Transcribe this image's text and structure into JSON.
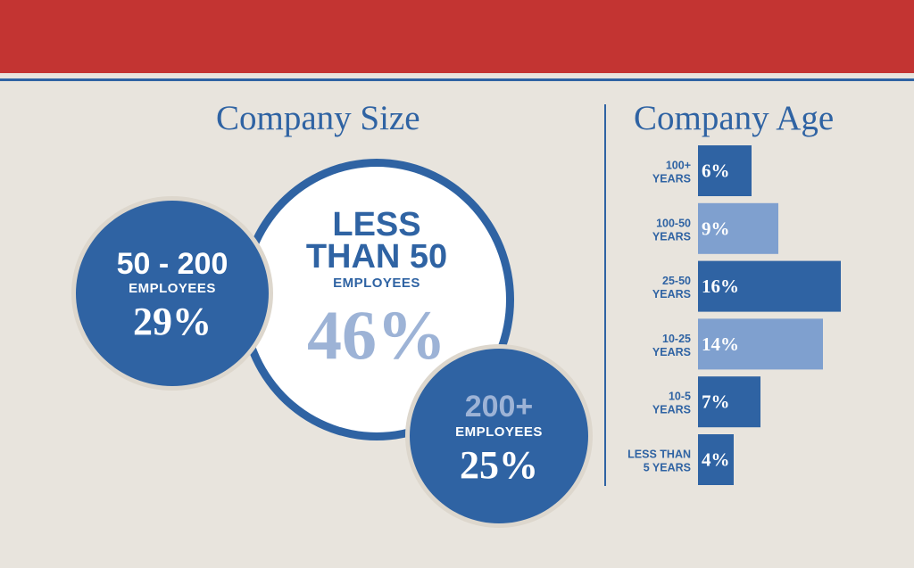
{
  "company_size": {
    "title": "Company Size",
    "segments": [
      {
        "label_line1": "LESS",
        "label_line2": "THAN 50",
        "sublabel": "EMPLOYEES",
        "value": 46,
        "value_text": "46%"
      },
      {
        "label": "50 - 200",
        "sublabel": "EMPLOYEES",
        "value": 29,
        "value_text": "29%"
      },
      {
        "label": "200+",
        "sublabel": "EMPLOYEES",
        "value": 25,
        "value_text": "25%"
      }
    ]
  },
  "chart_data": [
    {
      "type": "bar",
      "title": "Company Size",
      "categories": [
        "LESS THAN 50 EMPLOYEES",
        "50 - 200 EMPLOYEES",
        "200+ EMPLOYEES"
      ],
      "values": [
        46,
        29,
        25
      ]
    },
    {
      "type": "bar",
      "orientation": "horizontal",
      "title": "Company Age",
      "categories": [
        [
          "100+",
          "YEARS"
        ],
        [
          "100-50",
          "YEARS"
        ],
        [
          "25-50",
          "YEARS"
        ],
        [
          "10-25",
          "YEARS"
        ],
        [
          "10-5",
          "YEARS"
        ],
        [
          "LESS THAN",
          "5 YEARS"
        ]
      ],
      "values": [
        6,
        9,
        16,
        14,
        7,
        4
      ],
      "value_labels": [
        "6%",
        "9%",
        "16%",
        "14%",
        "7%",
        "4%"
      ],
      "bar_colors": [
        "#2f63a3",
        "#7fa0cf",
        "#2f63a3",
        "#7fa0cf",
        "#2f63a3",
        "#2f63a3"
      ]
    }
  ],
  "colors": {
    "accent_red": "#c33432",
    "primary_blue": "#2f63a3",
    "light_blue": "#7fa0cf",
    "background": "#e8e4dd",
    "white": "#ffffff"
  }
}
